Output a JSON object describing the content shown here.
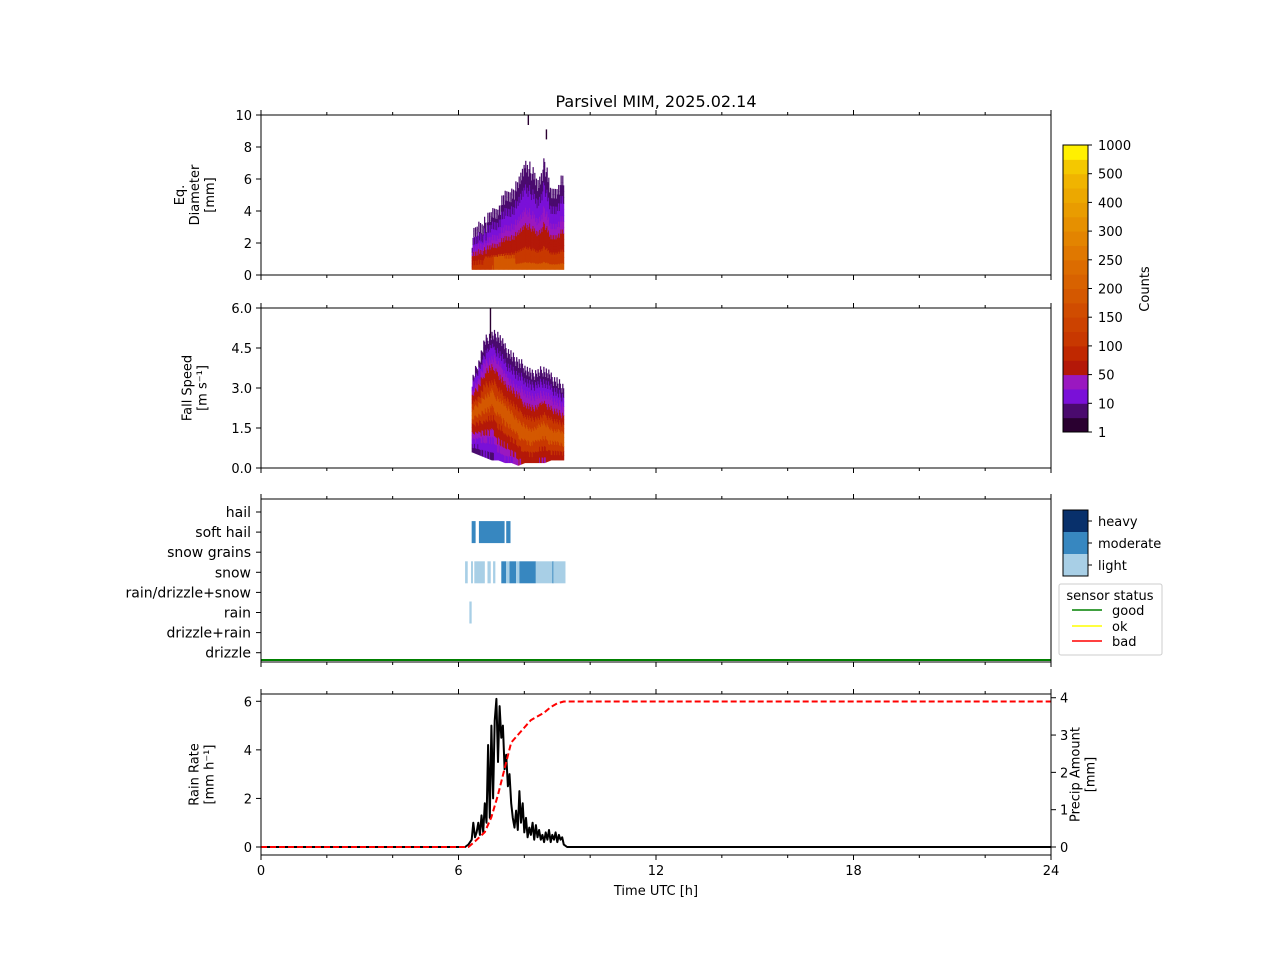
{
  "title": "Parsivel MIM, 2025.02.14",
  "xaxis": {
    "label": "Time UTC [h]",
    "range": [
      0,
      24
    ],
    "ticks": [
      "0",
      "6",
      "12",
      "18",
      "24"
    ]
  },
  "panels": {
    "diameter": {
      "ylabel_lines": [
        "Eq.",
        "Diameter",
        "[mm]"
      ],
      "ylim": [
        0,
        10
      ],
      "yticks": [
        "0",
        "2",
        "4",
        "6",
        "8",
        "10"
      ]
    },
    "speed": {
      "ylabel_lines": [
        "Fall Speed",
        "[m s⁻¹]"
      ],
      "ylim": [
        0,
        6
      ],
      "yticks": [
        "0.0",
        "1.5",
        "3.0",
        "4.5",
        "6.0"
      ]
    },
    "ptype": {
      "categories": [
        "hail",
        "soft hail",
        "snow grains",
        "snow",
        "rain/drizzle+snow",
        "rain",
        "drizzle+rain",
        "drizzle"
      ]
    },
    "rain": {
      "ylabel_lines": [
        "Rain Rate",
        "[mm h⁻¹]"
      ],
      "ylabel2_lines": [
        "Precip Amount",
        "[mm]"
      ],
      "ylim": [
        0,
        6.3
      ],
      "yticks": [
        "0",
        "2",
        "4",
        "6"
      ],
      "ylim2": [
        0,
        4.1
      ],
      "yticks2": [
        "0",
        "1",
        "2",
        "3",
        "4"
      ]
    }
  },
  "colorbar": {
    "label": "Counts",
    "ticks": [
      "1",
      "10",
      "50",
      "100",
      "150",
      "200",
      "250",
      "300",
      "400",
      "500",
      "1000"
    ],
    "colors": [
      "#2a0030",
      "#4a0a6e",
      "#7a10d8",
      "#9a18c0",
      "#b41808",
      "#c02800",
      "#c83800",
      "#cc4200",
      "#d04c00",
      "#d45800",
      "#d86200",
      "#dc6c00",
      "#e07800",
      "#e38400",
      "#e69000",
      "#e99c00",
      "#eca800",
      "#f0b400",
      "#f4c800",
      "#fff000"
    ]
  },
  "intensity_legend": {
    "items": [
      "heavy",
      "moderate",
      "light"
    ],
    "colors": [
      "#08306b",
      "#3787c0",
      "#a8cfe6"
    ]
  },
  "status_legend": {
    "title": "sensor status",
    "items": [
      {
        "label": "good",
        "color": "#008000"
      },
      {
        "label": "ok",
        "color": "#ffff00"
      },
      {
        "label": "bad",
        "color": "#ff0000"
      }
    ]
  },
  "chart_data": [
    {
      "type": "heatmap",
      "title": "Parsivel MIM, 2025.02.14",
      "ylabel": "Eq. Diameter [mm]",
      "xlabel": "Time UTC [h]",
      "xlim": [
        0,
        24
      ],
      "ylim": [
        0,
        10
      ],
      "columns": [
        {
          "t": 6.4,
          "top": 2.3,
          "core": 0.0
        },
        {
          "t": 6.6,
          "top": 3.0,
          "core": 0.0
        },
        {
          "t": 6.8,
          "top": 3.2,
          "core": 0.5
        },
        {
          "t": 7.0,
          "top": 3.8,
          "core": 0.8
        },
        {
          "t": 7.2,
          "top": 4.2,
          "core": 1.2
        },
        {
          "t": 7.4,
          "top": 4.8,
          "core": 1.0
        },
        {
          "t": 7.6,
          "top": 5.2,
          "core": 1.0
        },
        {
          "t": 7.8,
          "top": 5.5,
          "core": 0.9
        },
        {
          "t": 8.0,
          "top": 7.0,
          "core": 0.8
        },
        {
          "t": 8.2,
          "top": 6.5,
          "core": 0.6
        },
        {
          "t": 8.4,
          "top": 5.6,
          "core": 0.5
        },
        {
          "t": 8.6,
          "top": 7.0,
          "core": 0.6
        },
        {
          "t": 8.8,
          "top": 5.0,
          "core": 0.5
        },
        {
          "t": 9.0,
          "top": 5.5,
          "core": 0.4
        },
        {
          "t": 9.2,
          "top": 6.0,
          "core": 0.0
        }
      ],
      "isolated": [
        {
          "t": 8.1,
          "d": 9.5
        },
        {
          "t": 8.65,
          "d": 8.6
        }
      ]
    },
    {
      "type": "heatmap",
      "ylabel": "Fall Speed [m s⁻¹]",
      "xlim": [
        0,
        24
      ],
      "ylim": [
        0,
        6
      ],
      "columns": [
        {
          "t": 6.4,
          "lo": 0.6,
          "hi": 3.3,
          "core": 2.0
        },
        {
          "t": 6.6,
          "lo": 0.5,
          "hi": 4.0,
          "core": 2.2
        },
        {
          "t": 6.8,
          "lo": 0.4,
          "hi": 4.8,
          "core": 2.4
        },
        {
          "t": 7.0,
          "lo": 0.3,
          "hi": 5.0,
          "core": 2.6
        },
        {
          "t": 7.2,
          "lo": 0.3,
          "hi": 5.0,
          "core": 2.3
        },
        {
          "t": 7.4,
          "lo": 0.2,
          "hi": 4.5,
          "core": 2.0
        },
        {
          "t": 7.6,
          "lo": 0.2,
          "hi": 4.2,
          "core": 1.8
        },
        {
          "t": 7.8,
          "lo": 0.1,
          "hi": 4.0,
          "core": 1.5
        },
        {
          "t": 8.0,
          "lo": 0.2,
          "hi": 3.8,
          "core": 1.3
        },
        {
          "t": 8.2,
          "lo": 0.2,
          "hi": 3.5,
          "core": 1.2
        },
        {
          "t": 8.4,
          "lo": 0.2,
          "hi": 3.6,
          "core": 1.3
        },
        {
          "t": 8.6,
          "lo": 0.2,
          "hi": 3.7,
          "core": 1.4
        },
        {
          "t": 8.8,
          "lo": 0.3,
          "hi": 3.4,
          "core": 1.2
        },
        {
          "t": 9.0,
          "lo": 0.3,
          "hi": 3.2,
          "core": 1.2
        },
        {
          "t": 9.2,
          "lo": 0.3,
          "hi": 3.0,
          "core": 1.1
        }
      ],
      "isolated": [
        {
          "t": 6.95,
          "v": 6.0
        }
      ]
    },
    {
      "type": "bar",
      "subtype": "precipitation-type timeline",
      "categories": [
        "hail",
        "soft hail",
        "snow grains",
        "snow",
        "rain/drizzle+snow",
        "rain",
        "drizzle+rain",
        "drizzle"
      ],
      "xlim": [
        0,
        24
      ],
      "segments": [
        {
          "category": "soft hail",
          "start": 6.4,
          "end": 6.52,
          "intensity": "moderate"
        },
        {
          "category": "soft hail",
          "start": 6.62,
          "end": 7.4,
          "intensity": "moderate"
        },
        {
          "category": "soft hail",
          "start": 7.45,
          "end": 7.58,
          "intensity": "moderate"
        },
        {
          "category": "snow",
          "start": 6.2,
          "end": 6.28,
          "intensity": "light"
        },
        {
          "category": "snow",
          "start": 6.38,
          "end": 6.44,
          "intensity": "light"
        },
        {
          "category": "snow",
          "start": 6.48,
          "end": 6.8,
          "intensity": "light"
        },
        {
          "category": "snow",
          "start": 6.88,
          "end": 6.98,
          "intensity": "light"
        },
        {
          "category": "snow",
          "start": 7.05,
          "end": 7.12,
          "intensity": "light"
        },
        {
          "category": "snow",
          "start": 7.3,
          "end": 7.45,
          "intensity": "moderate"
        },
        {
          "category": "snow",
          "start": 7.45,
          "end": 7.55,
          "intensity": "light"
        },
        {
          "category": "snow",
          "start": 7.55,
          "end": 7.75,
          "intensity": "moderate"
        },
        {
          "category": "snow",
          "start": 7.75,
          "end": 7.85,
          "intensity": "light"
        },
        {
          "category": "snow",
          "start": 7.85,
          "end": 8.35,
          "intensity": "moderate"
        },
        {
          "category": "snow",
          "start": 8.35,
          "end": 8.85,
          "intensity": "light"
        },
        {
          "category": "snow",
          "start": 8.85,
          "end": 8.88,
          "intensity": "moderate"
        },
        {
          "category": "snow",
          "start": 8.88,
          "end": 9.25,
          "intensity": "light"
        },
        {
          "category": "rain",
          "start": 6.33,
          "end": 6.4,
          "intensity": "light"
        }
      ],
      "sensor_status": {
        "status": "good",
        "start": 0,
        "end": 24
      }
    },
    {
      "type": "line",
      "ylabel": "Rain Rate [mm h⁻¹]",
      "ylabel2": "Precip Amount [mm]",
      "xlabel": "Time UTC [h]",
      "xlim": [
        0,
        24
      ],
      "ylim": [
        0,
        6.3
      ],
      "ylim2": [
        0,
        4.1
      ],
      "series": [
        {
          "name": "Rain Rate",
          "axis": "left",
          "style": "solid",
          "color": "#000000",
          "x": [
            0,
            6.2,
            6.3,
            6.4,
            6.45,
            6.5,
            6.55,
            6.6,
            6.65,
            6.7,
            6.75,
            6.8,
            6.85,
            6.9,
            6.95,
            7.0,
            7.05,
            7.1,
            7.15,
            7.2,
            7.25,
            7.3,
            7.35,
            7.4,
            7.45,
            7.5,
            7.55,
            7.6,
            7.65,
            7.7,
            7.75,
            7.8,
            7.85,
            7.9,
            7.95,
            8.0,
            8.05,
            8.1,
            8.15,
            8.2,
            8.25,
            8.3,
            8.35,
            8.4,
            8.45,
            8.5,
            8.55,
            8.6,
            8.65,
            8.7,
            8.75,
            8.8,
            8.85,
            8.9,
            8.95,
            9.0,
            9.05,
            9.1,
            9.15,
            9.2,
            9.3,
            24
          ],
          "y": [
            0,
            0,
            0.1,
            0.3,
            1.0,
            0.4,
            0.6,
            1.0,
            0.5,
            1.3,
            0.6,
            1.8,
            1.0,
            4.2,
            1.2,
            5.0,
            2.0,
            5.2,
            6.1,
            3.5,
            5.8,
            4.5,
            5.0,
            3.2,
            3.8,
            2.5,
            3.0,
            1.8,
            1.2,
            0.8,
            1.5,
            0.7,
            2.3,
            1.0,
            1.8,
            0.6,
            1.2,
            0.4,
            0.8,
            0.5,
            1.0,
            0.3,
            0.9,
            0.4,
            0.7,
            0.3,
            0.5,
            0.2,
            0.6,
            0.3,
            0.7,
            0.2,
            0.5,
            0.3,
            0.6,
            0.2,
            0.5,
            0.3,
            0.4,
            0.1,
            0,
            0
          ]
        },
        {
          "name": "Precip Amount",
          "axis": "right",
          "style": "dashed",
          "color": "#ff0000",
          "x": [
            0,
            6.3,
            6.5,
            6.8,
            7.0,
            7.2,
            7.4,
            7.6,
            7.8,
            8.0,
            8.2,
            8.4,
            8.6,
            8.8,
            9.0,
            9.2,
            9.3,
            24
          ],
          "y": [
            0,
            0,
            0.15,
            0.4,
            0.8,
            1.4,
            2.1,
            2.8,
            3.0,
            3.2,
            3.4,
            3.5,
            3.6,
            3.75,
            3.85,
            3.9,
            3.9,
            3.9
          ]
        }
      ]
    }
  ]
}
